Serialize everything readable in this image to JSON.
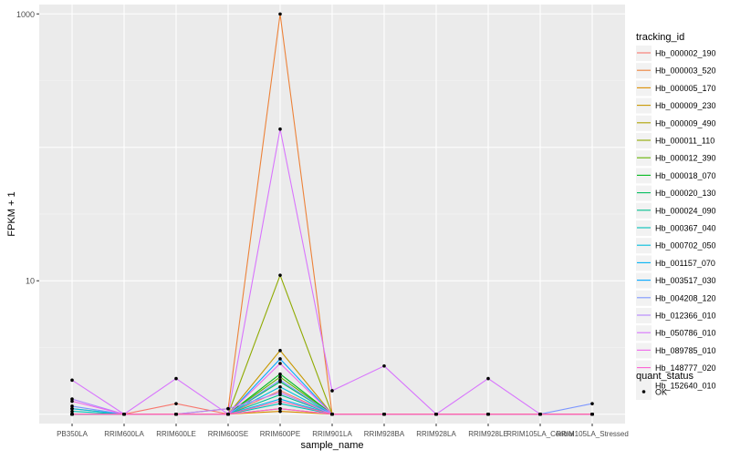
{
  "chart_data": {
    "type": "line",
    "xlabel": "sample_name",
    "ylabel": "FPKM + 1",
    "y_scale": "log10",
    "ylim": [
      1,
      1000
    ],
    "yticks": [
      10,
      1000
    ],
    "ytick_labels": [
      "10",
      "1000"
    ],
    "categories": [
      "PB350LA",
      "RRIM600LA",
      "RRIM600LE",
      "RRIM600SE",
      "RRIM600PE",
      "RRIM901LA",
      "RRIM928BA",
      "RRIM928LA",
      "RRIM928LE",
      "RRIM105LA_Control",
      "RRIM105LA_Stressed"
    ],
    "legend_title": "tracking_id",
    "legend_position": "right",
    "grid": true,
    "point_color": "#000000",
    "series": [
      {
        "name": "Hb_000002_190",
        "color": "#F8766D",
        "values": [
          1.1,
          1.0,
          1.2,
          1.0,
          1.5,
          1.0,
          1.0,
          1.0,
          1.0,
          1.0,
          1.0
        ]
      },
      {
        "name": "Hb_000003_520",
        "color": "#EC8239",
        "values": [
          1.0,
          1.0,
          1.0,
          1.1,
          998.0,
          1.0,
          1.0,
          1.0,
          1.0,
          1.0,
          1.0
        ]
      },
      {
        "name": "Hb_000005_170",
        "color": "#DB8E00",
        "values": [
          1.0,
          1.0,
          1.0,
          1.0,
          1.05,
          1.0,
          1.0,
          1.0,
          1.0,
          1.0,
          1.0
        ]
      },
      {
        "name": "Hb_000009_230",
        "color": "#C79800",
        "values": [
          1.0,
          1.0,
          1.0,
          1.0,
          3.0,
          1.0,
          1.0,
          1.0,
          1.0,
          1.0,
          1.0
        ]
      },
      {
        "name": "Hb_000009_490",
        "color": "#AEA200",
        "values": [
          1.0,
          1.0,
          1.0,
          1.0,
          1.1,
          1.0,
          1.0,
          1.0,
          1.0,
          1.0,
          1.0
        ]
      },
      {
        "name": "Hb_000011_110",
        "color": "#8FAA00",
        "values": [
          1.0,
          1.0,
          1.0,
          1.0,
          11.0,
          1.0,
          1.0,
          1.0,
          1.0,
          1.0,
          1.0
        ]
      },
      {
        "name": "Hb_000012_390",
        "color": "#64B200",
        "values": [
          1.0,
          1.0,
          1.0,
          1.0,
          1.9,
          1.0,
          1.0,
          1.0,
          1.0,
          1.0,
          1.0
        ]
      },
      {
        "name": "Hb_000018_070",
        "color": "#00B81B",
        "values": [
          1.0,
          1.0,
          1.0,
          1.0,
          2.0,
          1.0,
          1.0,
          1.0,
          1.0,
          1.0,
          1.0
        ]
      },
      {
        "name": "Hb_000020_130",
        "color": "#00BD5C",
        "values": [
          1.0,
          1.0,
          1.0,
          1.0,
          1.75,
          1.0,
          1.0,
          1.0,
          1.0,
          1.0,
          1.0
        ]
      },
      {
        "name": "Hb_000024_090",
        "color": "#00C08E",
        "values": [
          1.0,
          1.0,
          1.0,
          1.0,
          1.4,
          1.0,
          1.0,
          1.0,
          1.0,
          1.0,
          1.0
        ]
      },
      {
        "name": "Hb_000367_040",
        "color": "#00C1B7",
        "values": [
          1.05,
          1.0,
          1.0,
          1.0,
          1.2,
          1.0,
          1.0,
          1.0,
          1.0,
          1.0,
          1.0
        ]
      },
      {
        "name": "Hb_000702_050",
        "color": "#00BDDC",
        "values": [
          1.1,
          1.0,
          1.0,
          1.0,
          1.6,
          1.0,
          1.0,
          1.0,
          1.0,
          1.0,
          1.0
        ]
      },
      {
        "name": "Hb_001157_070",
        "color": "#00B2F3",
        "values": [
          1.0,
          1.0,
          1.0,
          1.0,
          1.3,
          1.0,
          1.0,
          1.0,
          1.0,
          1.0,
          1.0
        ]
      },
      {
        "name": "Hb_003517_030",
        "color": "#00A6FF",
        "values": [
          1.0,
          1.0,
          1.0,
          1.0,
          2.6,
          1.0,
          1.0,
          1.0,
          1.0,
          1.0,
          1.0
        ]
      },
      {
        "name": "Hb_004208_120",
        "color": "#7C96FF",
        "values": [
          1.15,
          1.0,
          1.0,
          1.0,
          1.8,
          1.0,
          1.0,
          1.0,
          1.0,
          1.0,
          1.2
        ]
      },
      {
        "name": "Hb_012366_010",
        "color": "#B385FF",
        "values": [
          1.3,
          1.0,
          1.0,
          1.1,
          1.45,
          1.0,
          1.0,
          1.0,
          1.0,
          1.0,
          1.0
        ]
      },
      {
        "name": "Hb_050786_010",
        "color": "#D874FD",
        "values": [
          1.8,
          1.0,
          1.85,
          1.0,
          137.0,
          1.5,
          2.3,
          1.0,
          1.85,
          1.0,
          1.0
        ]
      },
      {
        "name": "Hb_089785_010",
        "color": "#EF67EB",
        "values": [
          1.25,
          1.0,
          1.0,
          1.0,
          2.4,
          1.0,
          1.0,
          1.0,
          1.0,
          1.0,
          1.0
        ]
      },
      {
        "name": "Hb_148777_020",
        "color": "#FD61D3",
        "values": [
          1.0,
          1.0,
          1.0,
          1.0,
          1.1,
          1.0,
          1.0,
          1.0,
          1.0,
          1.0,
          1.0
        ]
      },
      {
        "name": "Hb_152640_010",
        "color": "#FF67A4",
        "values": [
          1.0,
          1.0,
          1.0,
          1.0,
          1.25,
          1.0,
          1.0,
          1.0,
          1.0,
          1.0,
          1.0
        ]
      }
    ],
    "shape_legend": {
      "title": "quant_status",
      "entries": [
        "OK"
      ]
    }
  }
}
